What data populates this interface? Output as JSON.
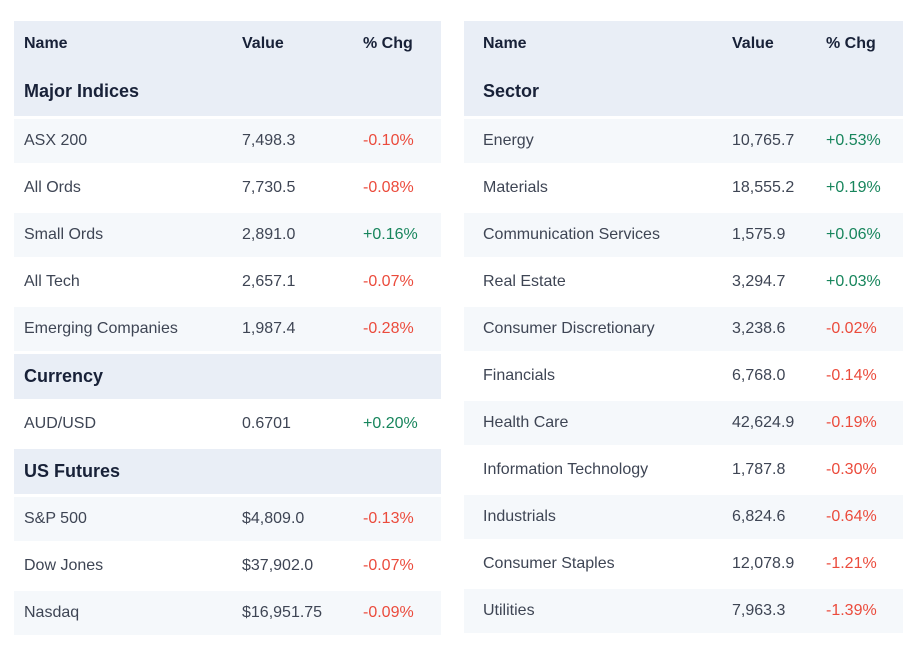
{
  "colors": {
    "header_bg": "#e9eef6",
    "alt_row_bg": "#f5f8fb",
    "heading_text": "#182138",
    "body_text": "#3e4554",
    "positive": "#17855c",
    "negative": "#eb4b3c"
  },
  "tables": [
    {
      "id": "indices",
      "columns": [
        "Name",
        "Value",
        "% Chg"
      ],
      "sections": [
        {
          "title": "Major Indices",
          "rows": [
            {
              "name": "ASX 200",
              "value": "7,498.3",
              "chg": "-0.10%",
              "dir": "down"
            },
            {
              "name": "All Ords",
              "value": "7,730.5",
              "chg": "-0.08%",
              "dir": "down"
            },
            {
              "name": "Small Ords",
              "value": "2,891.0",
              "chg": "+0.16%",
              "dir": "up"
            },
            {
              "name": "All Tech",
              "value": "2,657.1",
              "chg": "-0.07%",
              "dir": "down"
            },
            {
              "name": "Emerging Companies",
              "value": "1,987.4",
              "chg": "-0.28%",
              "dir": "down"
            }
          ]
        },
        {
          "title": "Currency",
          "rows": [
            {
              "name": "AUD/USD",
              "value": "0.6701",
              "chg": "+0.20%",
              "dir": "up"
            }
          ]
        },
        {
          "title": "US Futures",
          "rows": [
            {
              "name": "S&P 500",
              "value": "$4,809.0",
              "chg": "-0.13%",
              "dir": "down"
            },
            {
              "name": "Dow Jones",
              "value": "$37,902.0",
              "chg": "-0.07%",
              "dir": "down"
            },
            {
              "name": "Nasdaq",
              "value": "$16,951.75",
              "chg": "-0.09%",
              "dir": "down"
            }
          ]
        }
      ]
    },
    {
      "id": "sectors",
      "columns": [
        "Name",
        "Value",
        "% Chg"
      ],
      "sections": [
        {
          "title": "Sector",
          "rows": [
            {
              "name": "Energy",
              "value": "10,765.7",
              "chg": "+0.53%",
              "dir": "up"
            },
            {
              "name": "Materials",
              "value": "18,555.2",
              "chg": "+0.19%",
              "dir": "up"
            },
            {
              "name": "Communication Services",
              "value": "1,575.9",
              "chg": "+0.06%",
              "dir": "up"
            },
            {
              "name": "Real Estate",
              "value": "3,294.7",
              "chg": "+0.03%",
              "dir": "up"
            },
            {
              "name": "Consumer Discretionary",
              "value": "3,238.6",
              "chg": "-0.02%",
              "dir": "down"
            },
            {
              "name": "Financials",
              "value": "6,768.0",
              "chg": "-0.14%",
              "dir": "down"
            },
            {
              "name": "Health Care",
              "value": "42,624.9",
              "chg": "-0.19%",
              "dir": "down"
            },
            {
              "name": "Information Technology",
              "value": "1,787.8",
              "chg": "-0.30%",
              "dir": "down"
            },
            {
              "name": "Industrials",
              "value": "6,824.6",
              "chg": "-0.64%",
              "dir": "down"
            },
            {
              "name": "Consumer Staples",
              "value": "12,078.9",
              "chg": "-1.21%",
              "dir": "down"
            },
            {
              "name": "Utilities",
              "value": "7,963.3",
              "chg": "-1.39%",
              "dir": "down"
            }
          ]
        }
      ]
    }
  ]
}
